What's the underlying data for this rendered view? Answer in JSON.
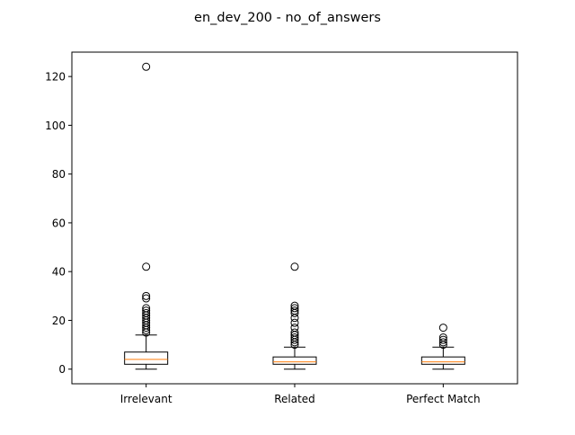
{
  "chart_data": {
    "type": "box",
    "title": "en_dev_200 - no_of_answers",
    "xlabel": "",
    "ylabel": "",
    "ylim": [
      -6,
      130
    ],
    "yticks": [
      0,
      20,
      40,
      60,
      80,
      100,
      120
    ],
    "categories": [
      "Irrelevant",
      "Related",
      "Perfect Match"
    ],
    "boxes": [
      {
        "category": "Irrelevant",
        "whisker_low": 0,
        "q1": 2,
        "median": 4,
        "q3": 7,
        "whisker_high": 14,
        "fliers": [
          15,
          16,
          17,
          18,
          19,
          20,
          21,
          22,
          23,
          24,
          25,
          29,
          30,
          42,
          124
        ]
      },
      {
        "category": "Related",
        "whisker_low": 0,
        "q1": 2,
        "median": 3,
        "q3": 5,
        "whisker_high": 9,
        "fliers": [
          10,
          11,
          12,
          13,
          14,
          15,
          17,
          19,
          21,
          23,
          24,
          25,
          26,
          42
        ]
      },
      {
        "category": "Perfect Match",
        "whisker_low": 0,
        "q1": 2,
        "median": 3,
        "q3": 5,
        "whisker_high": 9,
        "fliers": [
          10,
          11,
          12,
          13,
          17
        ]
      }
    ],
    "grid": false,
    "legend": "none",
    "colors": {
      "box": "#000000",
      "median": "#ff7f0e",
      "flier": "#000000"
    }
  }
}
